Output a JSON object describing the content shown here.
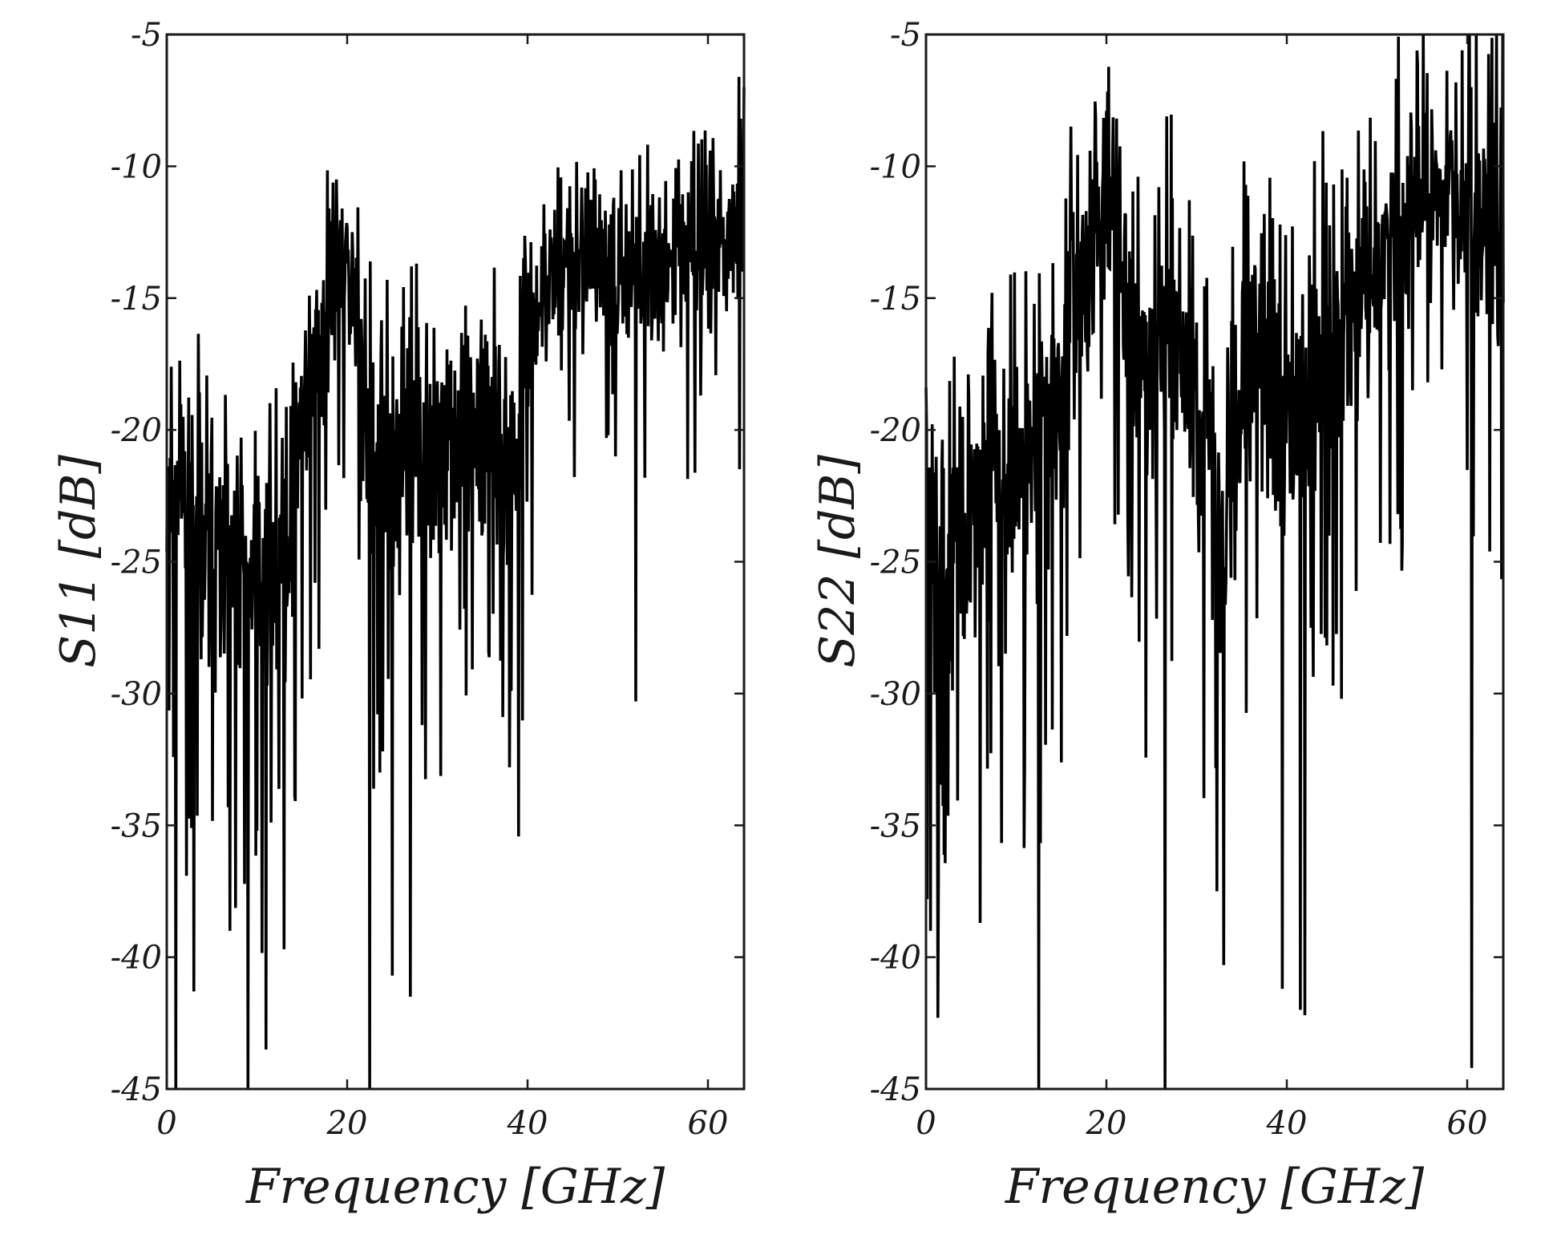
{
  "chart_data": [
    {
      "type": "line",
      "title": "",
      "xlabel": "Frequency [GHz]",
      "ylabel": "S11 [dB]",
      "xlim": [
        0,
        64
      ],
      "ylim": [
        -45,
        -5
      ],
      "xticks": [
        0,
        20,
        40,
        60
      ],
      "xtick_labels": [
        "0",
        "20",
        "40",
        "60"
      ],
      "yticks": [
        -5,
        -10,
        -15,
        -20,
        -25,
        -30,
        -35,
        -40,
        -45
      ],
      "ytick_labels": [
        "-5",
        "-10",
        "-15",
        "-20",
        "-25",
        "-30",
        "-35",
        "-40",
        "-45"
      ],
      "grid": false,
      "series": [
        {
          "name": "S11",
          "color": "#000000",
          "seed": 11,
          "points_per_ghz": 16,
          "envelope_x": [
            0,
            2,
            5,
            8,
            11,
            13,
            15,
            17,
            19,
            20,
            21,
            22,
            24,
            27,
            30,
            33,
            36,
            38,
            39,
            40,
            43,
            46,
            50,
            54,
            58,
            61,
            63,
            64
          ],
          "envelope_mean": [
            -22,
            -22.5,
            -25,
            -25,
            -26,
            -25,
            -19,
            -17,
            -14,
            -13,
            -15,
            -21,
            -22,
            -21,
            -21,
            -20,
            -20,
            -21,
            -22,
            -16,
            -14,
            -14,
            -14,
            -14,
            -13.5,
            -13,
            -12,
            -11
          ],
          "envelope_spread": [
            5,
            5.5,
            5.5,
            5.5,
            5.5,
            5.5,
            5,
            4.5,
            4,
            4,
            4.5,
            5.5,
            5.5,
            5.5,
            5,
            5,
            5,
            6,
            6,
            4.5,
            3.5,
            3.5,
            3.5,
            3.5,
            3.5,
            3.5,
            4,
            4
          ],
          "spikes": [
            {
              "x": 1.0,
              "y": -45
            },
            {
              "x": 9.0,
              "y": -45
            },
            {
              "x": 11.0,
              "y": -43.5
            },
            {
              "x": 22.5,
              "y": -45
            },
            {
              "x": 27.0,
              "y": -41.5
            },
            {
              "x": 3.0,
              "y": -41.3
            },
            {
              "x": 52.0,
              "y": -30.3
            },
            {
              "x": 64.0,
              "y": -7
            },
            {
              "x": 13.0,
              "y": -39.7
            },
            {
              "x": 7.0,
              "y": -39.0
            },
            {
              "x": 25.0,
              "y": -40.7
            },
            {
              "x": 38.0,
              "y": -32.8
            }
          ]
        }
      ]
    },
    {
      "type": "line",
      "title": "",
      "xlabel": "Frequency [GHz]",
      "ylabel": "S22 [dB]",
      "xlim": [
        0,
        64
      ],
      "ylim": [
        -45,
        -5
      ],
      "xticks": [
        0,
        20,
        40,
        60
      ],
      "xtick_labels": [
        "0",
        "20",
        "40",
        "60"
      ],
      "yticks": [
        -5,
        -10,
        -15,
        -20,
        -25,
        -30,
        -35,
        -40,
        -45
      ],
      "ytick_labels": [
        "-5",
        "-10",
        "-15",
        "-20",
        "-25",
        "-30",
        "-35",
        "-40",
        "-45"
      ],
      "grid": false,
      "series": [
        {
          "name": "S22",
          "color": "#000000",
          "seed": 22,
          "points_per_ghz": 16,
          "envelope_x": [
            0,
            3,
            6,
            9,
            12,
            15,
            17,
            19,
            20,
            21,
            23,
            25,
            27,
            29,
            31,
            33,
            35,
            37,
            39,
            41,
            43,
            46,
            50,
            54,
            58,
            61,
            63,
            64
          ],
          "envelope_mean": [
            -24,
            -24,
            -23,
            -22,
            -21,
            -18,
            -15,
            -12,
            -11,
            -13,
            -17,
            -18,
            -15,
            -18,
            -20,
            -25,
            -18,
            -17,
            -19,
            -20,
            -17,
            -16,
            -14,
            -11,
            -11,
            -12,
            -13,
            -13
          ],
          "envelope_spread": [
            6,
            6,
            6,
            6,
            6,
            6,
            5.5,
            4.5,
            4,
            4.5,
            5.5,
            6,
            6,
            6,
            6,
            6.5,
            6,
            6,
            7,
            7,
            6,
            5.5,
            5.5,
            5,
            5,
            6,
            6,
            6
          ],
          "spikes": [
            {
              "x": 0.5,
              "y": -39.0
            },
            {
              "x": 1.3,
              "y": -42.3
            },
            {
              "x": 12.5,
              "y": -45
            },
            {
              "x": 26.5,
              "y": -45
            },
            {
              "x": 33.0,
              "y": -40.3
            },
            {
              "x": 39.5,
              "y": -41.2
            },
            {
              "x": 41.5,
              "y": -42.0
            },
            {
              "x": 42.0,
              "y": -42.2
            },
            {
              "x": 60.5,
              "y": -44.2
            },
            {
              "x": 6.0,
              "y": -38.7
            },
            {
              "x": 54.5,
              "y": -6.1
            },
            {
              "x": 20.0,
              "y": -7.9
            }
          ]
        }
      ]
    }
  ]
}
